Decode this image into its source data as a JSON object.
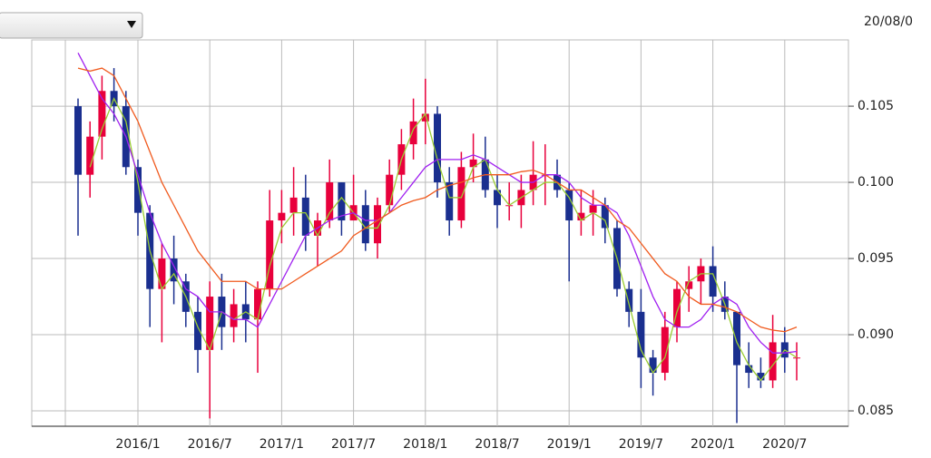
{
  "header": {
    "date": "20/08/0"
  },
  "chart_data": {
    "type": "candlestick",
    "categories": [
      null,
      null,
      null,
      null,
      null,
      "2016/1",
      null,
      null,
      null,
      null,
      null,
      "2016/7",
      null,
      null,
      null,
      null,
      null,
      "2017/1",
      null,
      null,
      null,
      null,
      null,
      "2017/7",
      null,
      null,
      null,
      null,
      null,
      "2018/1",
      null,
      null,
      null,
      null,
      null,
      "2018/7",
      null,
      null,
      null,
      null,
      null,
      "2019/1",
      null,
      null,
      null,
      null,
      null,
      "2019/7",
      null,
      null,
      null,
      null,
      null,
      "2020/1",
      null,
      null,
      null,
      null,
      null,
      "2020/7",
      null
    ],
    "ohlc": [
      [
        0.105,
        0.1055,
        0.0965,
        0.1005
      ],
      [
        0.1005,
        0.104,
        0.099,
        0.103
      ],
      [
        0.103,
        0.107,
        0.1015,
        0.106
      ],
      [
        0.106,
        0.1075,
        0.104,
        0.105
      ],
      [
        0.105,
        0.106,
        0.1005,
        0.101
      ],
      [
        0.101,
        0.1015,
        0.0965,
        0.098
      ],
      [
        0.098,
        0.0985,
        0.0905,
        0.093
      ],
      [
        0.093,
        0.096,
        0.0895,
        0.095
      ],
      [
        0.095,
        0.0965,
        0.092,
        0.0935
      ],
      [
        0.0935,
        0.094,
        0.0905,
        0.0915
      ],
      [
        0.0915,
        0.0925,
        0.0875,
        0.089
      ],
      [
        0.089,
        0.0935,
        0.0845,
        0.0925
      ],
      [
        0.0925,
        0.094,
        0.089,
        0.0905
      ],
      [
        0.0905,
        0.093,
        0.0895,
        0.092
      ],
      [
        0.092,
        0.0935,
        0.0895,
        0.091
      ],
      [
        0.091,
        0.0935,
        0.0875,
        0.093
      ],
      [
        0.093,
        0.0995,
        0.0925,
        0.0975
      ],
      [
        0.0975,
        0.0995,
        0.096,
        0.098
      ],
      [
        0.098,
        0.101,
        0.0965,
        0.099
      ],
      [
        0.099,
        0.1005,
        0.0955,
        0.0965
      ],
      [
        0.0965,
        0.098,
        0.0945,
        0.0975
      ],
      [
        0.0975,
        0.1015,
        0.097,
        0.1
      ],
      [
        0.1,
        0.1,
        0.0965,
        0.0975
      ],
      [
        0.0975,
        0.1005,
        0.0975,
        0.0985
      ],
      [
        0.0985,
        0.0995,
        0.0955,
        0.096
      ],
      [
        0.096,
        0.099,
        0.095,
        0.0985
      ],
      [
        0.0985,
        0.1015,
        0.098,
        0.1005
      ],
      [
        0.1005,
        0.1035,
        0.0995,
        0.1025
      ],
      [
        0.1025,
        0.1055,
        0.1015,
        0.104
      ],
      [
        0.104,
        0.1068,
        0.1025,
        0.1045
      ],
      [
        0.1045,
        0.105,
        0.099,
        0.1
      ],
      [
        0.1,
        0.101,
        0.0965,
        0.0975
      ],
      [
        0.0975,
        0.102,
        0.097,
        0.101
      ],
      [
        0.101,
        0.1032,
        0.1,
        0.1015
      ],
      [
        0.1015,
        0.103,
        0.099,
        0.0995
      ],
      [
        0.0995,
        0.1005,
        0.097,
        0.0985
      ],
      [
        0.0985,
        0.1,
        0.0975,
        0.0985
      ],
      [
        0.0985,
        0.1005,
        0.097,
        0.0995
      ],
      [
        0.0995,
        0.1027,
        0.0985,
        0.1005
      ],
      [
        0.1005,
        0.1025,
        0.0985,
        0.1005
      ],
      [
        0.1005,
        0.1015,
        0.099,
        0.0995
      ],
      [
        0.0995,
        0.1,
        0.0935,
        0.0975
      ],
      [
        0.0975,
        0.0995,
        0.0965,
        0.098
      ],
      [
        0.098,
        0.0995,
        0.0965,
        0.0985
      ],
      [
        0.0985,
        0.099,
        0.096,
        0.097
      ],
      [
        0.097,
        0.0975,
        0.0925,
        0.093
      ],
      [
        0.093,
        0.0935,
        0.0905,
        0.0915
      ],
      [
        0.0915,
        0.093,
        0.0865,
        0.0885
      ],
      [
        0.0885,
        0.089,
        0.086,
        0.0875
      ],
      [
        0.0875,
        0.0915,
        0.087,
        0.0905
      ],
      [
        0.0905,
        0.0935,
        0.0895,
        0.093
      ],
      [
        0.093,
        0.0945,
        0.0915,
        0.0935
      ],
      [
        0.0935,
        0.095,
        0.092,
        0.0945
      ],
      [
        0.0945,
        0.0958,
        0.0915,
        0.0925
      ],
      [
        0.0925,
        0.0935,
        0.091,
        0.0915
      ],
      [
        0.0915,
        0.0915,
        0.0842,
        0.088
      ],
      [
        0.088,
        0.0895,
        0.0865,
        0.0875
      ],
      [
        0.0875,
        0.0885,
        0.0865,
        0.087
      ],
      [
        0.087,
        0.0913,
        0.0865,
        0.0895
      ],
      [
        0.0895,
        0.0905,
        0.0875,
        0.0885
      ],
      [
        0.0885,
        0.0895,
        0.087,
        0.0885
      ]
    ],
    "up_color": "#e8003c",
    "down_color": "#1a2f8f",
    "series": [
      {
        "color": "#9acd32",
        "values": [
          null,
          0.101,
          0.1035,
          0.1055,
          0.104,
          0.1,
          0.0955,
          0.093,
          0.094,
          0.0925,
          0.0905,
          0.089,
          0.0915,
          0.091,
          0.0915,
          0.091,
          0.0945,
          0.097,
          0.098,
          0.098,
          0.0965,
          0.098,
          0.099,
          0.098,
          0.097,
          0.097,
          0.0985,
          0.1015,
          0.1035,
          0.1045,
          0.1015,
          0.099,
          0.099,
          0.101,
          0.1015,
          0.0995,
          0.0985,
          0.099,
          0.0995,
          0.1,
          0.1,
          0.099,
          0.0975,
          0.098,
          0.0975,
          0.095,
          0.092,
          0.089,
          0.0875,
          0.0885,
          0.0915,
          0.0935,
          0.094,
          0.094,
          0.092,
          0.0895,
          0.088,
          0.087,
          0.088,
          0.089,
          0.0885
        ]
      },
      {
        "color": "#a020f0",
        "values": [
          0.1085,
          0.107,
          0.1055,
          0.1045,
          0.103,
          0.1005,
          0.098,
          0.096,
          0.0945,
          0.093,
          0.0925,
          0.0915,
          0.0915,
          0.091,
          0.091,
          0.0905,
          0.092,
          0.0935,
          0.095,
          0.0965,
          0.097,
          0.0975,
          0.0978,
          0.098,
          0.0975,
          0.0975,
          0.098,
          0.099,
          0.1,
          0.101,
          0.1015,
          0.1015,
          0.1015,
          0.1018,
          0.1015,
          0.101,
          0.1005,
          0.1,
          0.1,
          0.1005,
          0.1005,
          0.1,
          0.099,
          0.0985,
          0.0985,
          0.098,
          0.0965,
          0.0945,
          0.0925,
          0.091,
          0.0905,
          0.0905,
          0.091,
          0.092,
          0.0925,
          0.092,
          0.0905,
          0.0895,
          0.0888,
          0.0888,
          0.0889
        ]
      },
      {
        "color": "#f05a1e",
        "values": [
          0.1075,
          0.1073,
          0.1075,
          0.107,
          0.1055,
          0.104,
          0.102,
          0.1,
          0.0985,
          0.097,
          0.0955,
          0.0945,
          0.0935,
          0.0935,
          0.0935,
          0.093,
          0.093,
          0.093,
          0.0935,
          0.094,
          0.0945,
          0.095,
          0.0955,
          0.0965,
          0.097,
          0.0975,
          0.098,
          0.0985,
          0.0988,
          0.099,
          0.0995,
          0.0998,
          0.1,
          0.1003,
          0.1005,
          0.1005,
          0.1005,
          0.1007,
          0.1008,
          0.1005,
          0.1,
          0.0995,
          0.0995,
          0.099,
          0.0985,
          0.0975,
          0.097,
          0.096,
          0.095,
          0.094,
          0.0935,
          0.0925,
          0.092,
          0.092,
          0.0918,
          0.0915,
          0.091,
          0.0905,
          0.0903,
          0.0902,
          0.0905
        ]
      }
    ],
    "ylim": [
      0.08399,
      0.10935
    ],
    "yticks": [
      {
        "value": 0.085,
        "label": "0.085"
      },
      {
        "value": 0.09,
        "label": "0.090"
      },
      {
        "value": 0.095,
        "label": "0.095"
      },
      {
        "value": 0.1,
        "label": "0.100"
      },
      {
        "value": 0.105,
        "label": "0.105"
      }
    ],
    "grid": true
  }
}
